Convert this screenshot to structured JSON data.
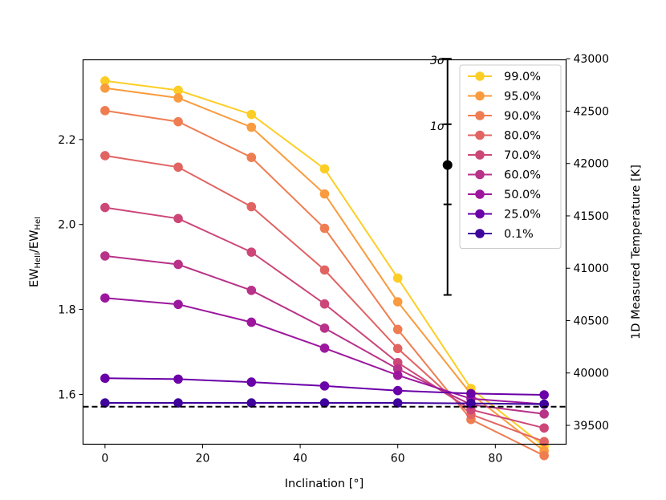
{
  "chart_data": {
    "type": "line",
    "xlabel": "Inclination [°]",
    "ylabel": "EW_HeII/EW_HeI",
    "ylabel_parts": {
      "base1": "EW",
      "sub1": "HeII",
      "sep": "/",
      "base2": "EW",
      "sub2": "HeI"
    },
    "y2label": "1D Measured Temperature [K]",
    "xlim": [
      -4.5,
      94.5
    ],
    "ylim": [
      1.4828,
      2.3877
    ],
    "y2lim": [
      39320,
      42990
    ],
    "xticks": [
      0,
      20,
      40,
      60,
      80
    ],
    "yticks": [
      1.6,
      1.8,
      2.0,
      2.2
    ],
    "ytick_labels": [
      "1.6",
      "1.8",
      "2.0",
      "2.2"
    ],
    "y2ticks": [
      39500,
      40000,
      40500,
      41000,
      41500,
      42000,
      42500,
      43000
    ],
    "x": [
      0,
      15,
      30,
      45,
      60,
      75,
      90
    ],
    "series": [
      {
        "name": "99.0%",
        "color": "#fcce25",
        "values": [
          2.338,
          2.316,
          2.259,
          2.131,
          1.874,
          1.614,
          1.478
        ]
      },
      {
        "name": "95.0%",
        "color": "#f99b3e",
        "values": [
          2.321,
          2.298,
          2.229,
          2.072,
          1.818,
          1.601,
          1.467
        ]
      },
      {
        "name": "90.0%",
        "color": "#ef7d52",
        "values": [
          2.268,
          2.242,
          2.158,
          1.991,
          1.753,
          1.541,
          1.456
        ]
      },
      {
        "name": "80.0%",
        "color": "#e16462",
        "values": [
          2.162,
          2.135,
          2.042,
          1.893,
          1.708,
          1.553,
          1.489
        ]
      },
      {
        "name": "70.0%",
        "color": "#cc4778",
        "values": [
          2.04,
          2.014,
          1.935,
          1.813,
          1.675,
          1.564,
          1.521
        ]
      },
      {
        "name": "60.0%",
        "color": "#b83289",
        "values": [
          1.926,
          1.906,
          1.845,
          1.756,
          1.66,
          1.576,
          1.554
        ]
      },
      {
        "name": "50.0%",
        "color": "#9c179e",
        "values": [
          1.827,
          1.812,
          1.77,
          1.709,
          1.645,
          1.59,
          1.577
        ]
      },
      {
        "name": "25.0%",
        "color": "#6a00a8",
        "values": [
          1.638,
          1.636,
          1.629,
          1.62,
          1.609,
          1.602,
          1.599
        ]
      },
      {
        "name": "0.1%",
        "color": "#3e049c",
        "values": [
          1.58,
          1.58,
          1.58,
          1.58,
          1.58,
          1.579,
          1.577
        ]
      }
    ],
    "hline": {
      "y": 1.571,
      "style": "dashed",
      "color": "#000000"
    },
    "measurement": {
      "x": 70.2,
      "y2": 41985,
      "y2_low": 40745,
      "y2_high": 43000,
      "sigma_marks": [
        {
          "label": "3σ",
          "y2": 43000
        },
        {
          "label": "1σ",
          "y2": 42375
        },
        {
          "label": "",
          "y2": 41610
        }
      ]
    },
    "legend_position": "top-right"
  }
}
